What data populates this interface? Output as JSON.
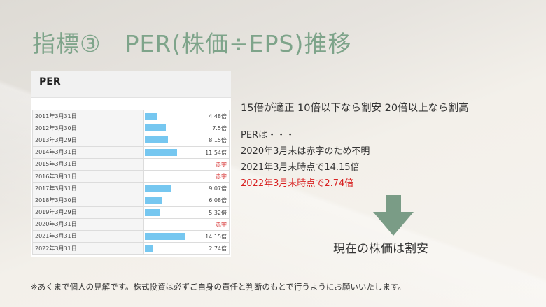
{
  "title": "指標③　PER(株価÷EPS)推移",
  "panel": {
    "title": "PER",
    "rows": [
      {
        "date": "2011年3月31日",
        "value": 4.48,
        "label": "4.48倍"
      },
      {
        "date": "2012年3月30日",
        "value": 7.5,
        "label": "7.5倍"
      },
      {
        "date": "2013年3月29日",
        "value": 8.15,
        "label": "8.15倍"
      },
      {
        "date": "2014年3月31日",
        "value": 11.54,
        "label": "11.54倍"
      },
      {
        "date": "2015年3月31日",
        "value": null,
        "label": "赤字"
      },
      {
        "date": "2016年3月31日",
        "value": null,
        "label": "赤字"
      },
      {
        "date": "2017年3月31日",
        "value": 9.07,
        "label": "9.07倍"
      },
      {
        "date": "2018年3月30日",
        "value": 6.08,
        "label": "6.08倍"
      },
      {
        "date": "2019年3月29日",
        "value": 5.32,
        "label": "5.32倍"
      },
      {
        "date": "2020年3月31日",
        "value": null,
        "label": "赤字"
      },
      {
        "date": "2021年3月31日",
        "value": 14.15,
        "label": "14.15倍"
      },
      {
        "date": "2022年3月31日",
        "value": 2.74,
        "label": "2.74倍"
      }
    ]
  },
  "notes": {
    "guideline": "15倍が適正 10倍以下なら割安 20倍以上なら割高",
    "line1": "PERは・・・",
    "line2": "2020年3月末は赤字のため不明",
    "line3": "2021年3月末時点で14.15倍",
    "line4": "2022年3月末時点で2.74倍"
  },
  "conclusion": "現在の株価は割安",
  "disclaimer": "※あくまで個人の見解です。株式投資は必ずご自身の責任と判断のもとで行うようにお願いいたします。",
  "colors": {
    "title": "#7ea48a",
    "arrow": "#7a9c86",
    "bar": "#76c7f0",
    "highlight": "#d82222",
    "deficit": "#d83a3a"
  }
}
